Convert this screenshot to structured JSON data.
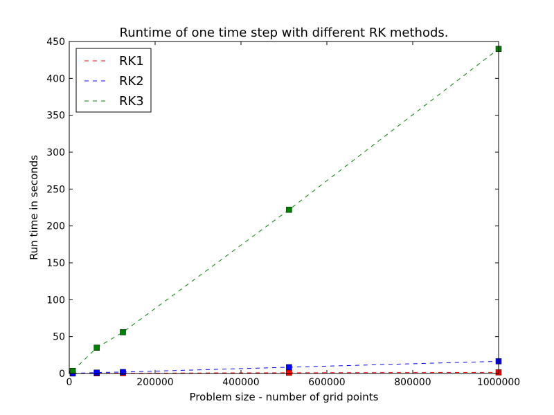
{
  "chart_data": {
    "type": "line",
    "title": "Runtime of one time step with different RK methods.",
    "xlabel": "Problem size - number of grid points",
    "ylabel": "Run time in seconds",
    "xlim": [
      0,
      1000000
    ],
    "ylim": [
      0,
      450
    ],
    "x_ticks": [
      0,
      200000,
      400000,
      600000,
      800000,
      1000000
    ],
    "y_ticks": [
      0,
      50,
      100,
      150,
      200,
      250,
      300,
      350,
      400,
      450
    ],
    "grid": false,
    "legend_position": "top-left",
    "series": [
      {
        "name": "RK1",
        "color": "#ff0000",
        "marker": "square",
        "line_style": "dashed",
        "x": [
          8000,
          64000,
          125000,
          512000,
          1000000
        ],
        "y": [
          0.1,
          0.3,
          0.5,
          1.0,
          1.5
        ]
      },
      {
        "name": "RK2",
        "color": "#0000ff",
        "marker": "square",
        "line_style": "dashed",
        "x": [
          8000,
          64000,
          125000,
          512000,
          1000000
        ],
        "y": [
          0.2,
          1.2,
          2.0,
          8.5,
          16.5
        ]
      },
      {
        "name": "RK3",
        "color": "#008000",
        "marker": "square",
        "line_style": "dashed",
        "x": [
          8000,
          64000,
          125000,
          512000,
          1000000
        ],
        "y": [
          3.5,
          35,
          56,
          222,
          440
        ]
      }
    ]
  }
}
